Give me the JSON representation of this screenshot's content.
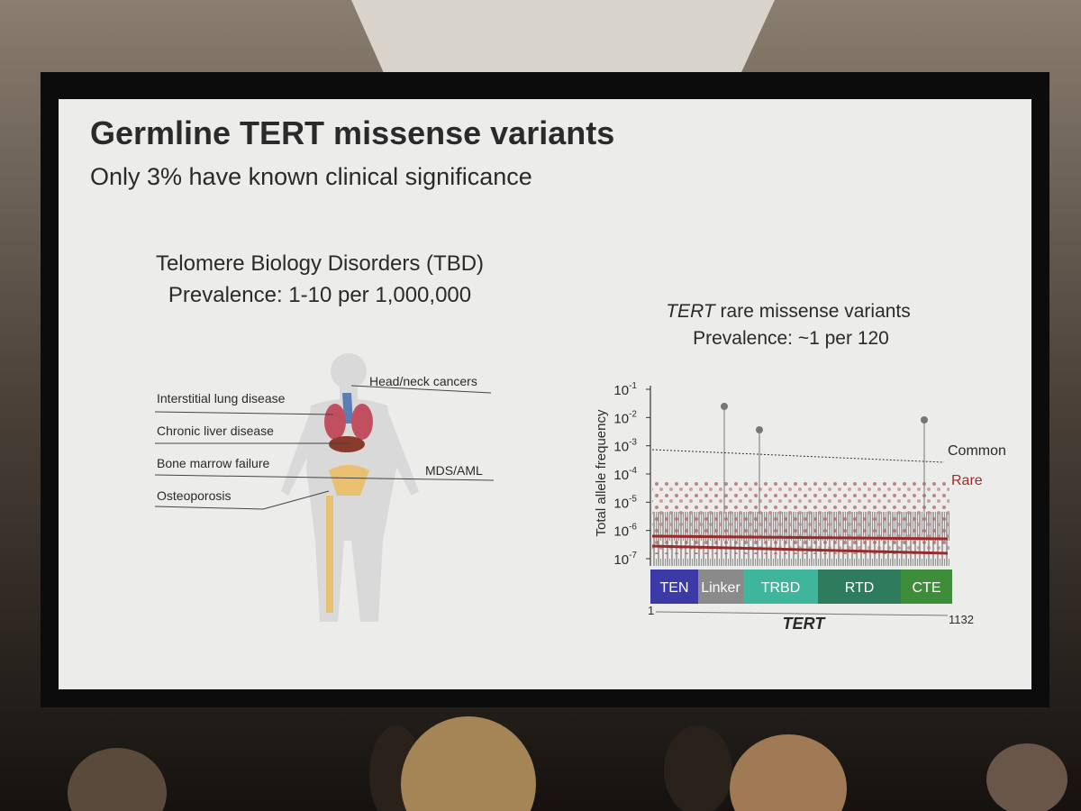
{
  "slide": {
    "title": "Germline TERT missense variants",
    "subtitle": "Only 3% have known clinical significance",
    "left_panel": {
      "heading": [
        "Telomere Biology Disorders (TBD)",
        "Prevalence: 1-10 per 1,000,000"
      ],
      "conditions": [
        "Head/neck cancers",
        "Interstitial lung disease",
        "Chronic liver disease",
        "Bone marrow failure",
        "MDS/AML",
        "Osteoporosis"
      ]
    },
    "right_panel": {
      "heading_italic": "TERT",
      "heading_rest": " rare missense variants",
      "prevalence": "Prevalence: ~1 per 120",
      "y_axis_label": "Total allele frequency",
      "y_ticks": [
        {
          "base": "10",
          "exponent": "-1"
        },
        {
          "base": "10",
          "exponent": "-2"
        },
        {
          "base": "10",
          "exponent": "-3"
        },
        {
          "base": "10",
          "exponent": "-4"
        },
        {
          "base": "10",
          "exponent": "-5"
        },
        {
          "base": "10",
          "exponent": "-6"
        },
        {
          "base": "10",
          "exponent": "-7"
        }
      ],
      "thresholds": [
        "Common",
        "Rare"
      ],
      "domains": [
        "TEN",
        "Linker",
        "TRBD",
        "RTD",
        "CTE"
      ],
      "x_start": "1",
      "x_end": "1132",
      "x_label": "TERT"
    }
  }
}
